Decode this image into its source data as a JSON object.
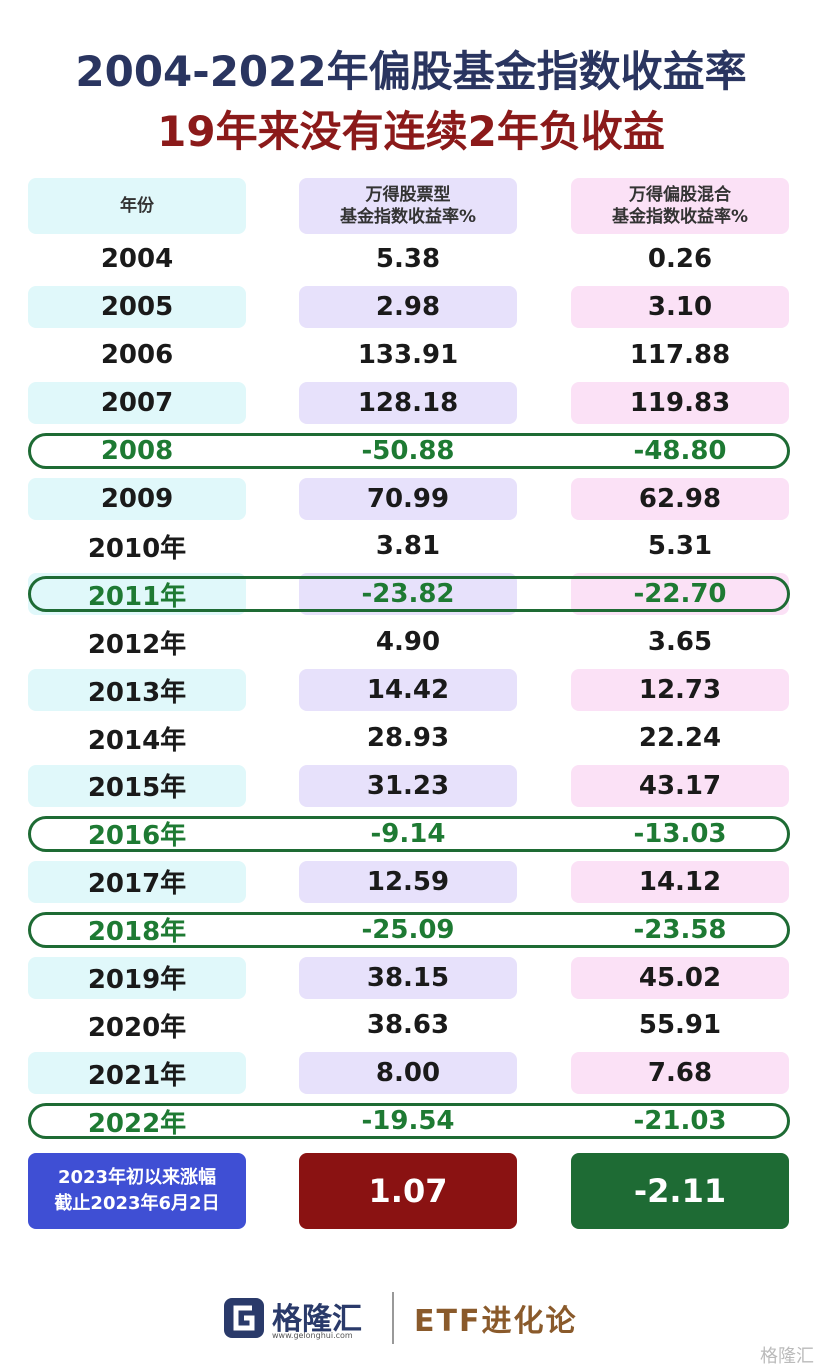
{
  "header": {
    "title": "2004-2022年偏股基金指数收益率",
    "subtitle": "19年来没有连续2年负收益"
  },
  "table": {
    "columns": [
      "年份",
      "万得股票型\n基金指数收益率%",
      "万得偏股混合\n基金指数收益率%"
    ],
    "rows": [
      [
        "2004",
        "5.38",
        "0.26"
      ],
      [
        "2005",
        "2.98",
        "3.10"
      ],
      [
        "2006",
        "133.91",
        "117.88"
      ],
      [
        "2007",
        "128.18",
        "119.83"
      ],
      [
        "2008",
        "-50.88",
        "-48.80"
      ],
      [
        "2009",
        "70.99",
        "62.98"
      ],
      [
        "2010年",
        "3.81",
        "5.31"
      ],
      [
        "2011年",
        "-23.82",
        "-22.70"
      ],
      [
        "2012年",
        "4.90",
        "3.65"
      ],
      [
        "2013年",
        "14.42",
        "12.73"
      ],
      [
        "2014年",
        "28.93",
        "22.24"
      ],
      [
        "2015年",
        "31.23",
        "43.17"
      ],
      [
        "2016年",
        "-9.14",
        "-13.03"
      ],
      [
        "2017年",
        "12.59",
        "14.12"
      ],
      [
        "2018年",
        "-25.09",
        "-23.58"
      ],
      [
        "2019年",
        "38.15",
        "45.02"
      ],
      [
        "2020年",
        "38.63",
        "55.91"
      ],
      [
        "2021年",
        "8.00",
        "7.68"
      ],
      [
        "2022年",
        "-19.54",
        "-21.03"
      ]
    ],
    "summary": [
      "2023年初以来涨幅\n截止2023年6月2日",
      "1.07",
      "-2.11"
    ]
  },
  "footer": {
    "logo": "格隆汇",
    "url": "www.gelonghui.com",
    "brand": "ETF进化论",
    "watermark": "格隆汇"
  }
}
